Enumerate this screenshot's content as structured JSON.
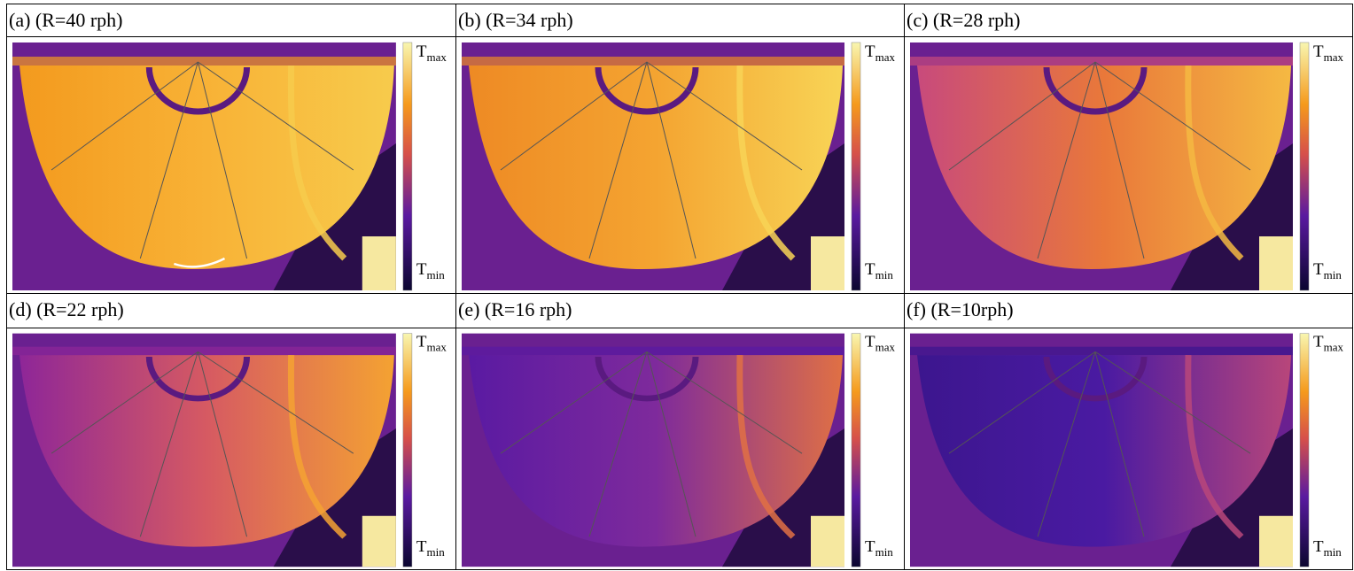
{
  "panels": [
    {
      "label": "(a) (R=40 rph)",
      "colorbar": {
        "max": {
          "symbol": "T",
          "subscript": "max"
        },
        "min": {
          "symbol": "T",
          "subscript": "min"
        }
      }
    },
    {
      "label": "(b) (R=34 rph)",
      "colorbar": {
        "max": {
          "symbol": "T",
          "subscript": "max"
        },
        "min": {
          "symbol": "T",
          "subscript": "min"
        }
      }
    },
    {
      "label": "(c) (R=28 rph)",
      "colorbar": {
        "max": {
          "symbol": "T",
          "subscript": "max"
        },
        "min": {
          "symbol": "T",
          "subscript": "min"
        }
      }
    },
    {
      "label": "(d) (R=22 rph)",
      "colorbar": {
        "max": {
          "symbol": "T",
          "subscript": "max"
        },
        "min": {
          "symbol": "T",
          "subscript": "min"
        }
      }
    },
    {
      "label": "(e) (R=16 rph)",
      "colorbar": {
        "max": {
          "symbol": "T",
          "subscript": "max"
        },
        "min": {
          "symbol": "T",
          "subscript": "min"
        }
      }
    },
    {
      "label": "(f) (R=10rph)",
      "colorbar": {
        "max": {
          "symbol": "T",
          "subscript": "max"
        },
        "min": {
          "symbol": "T",
          "subscript": "min"
        }
      }
    }
  ]
}
